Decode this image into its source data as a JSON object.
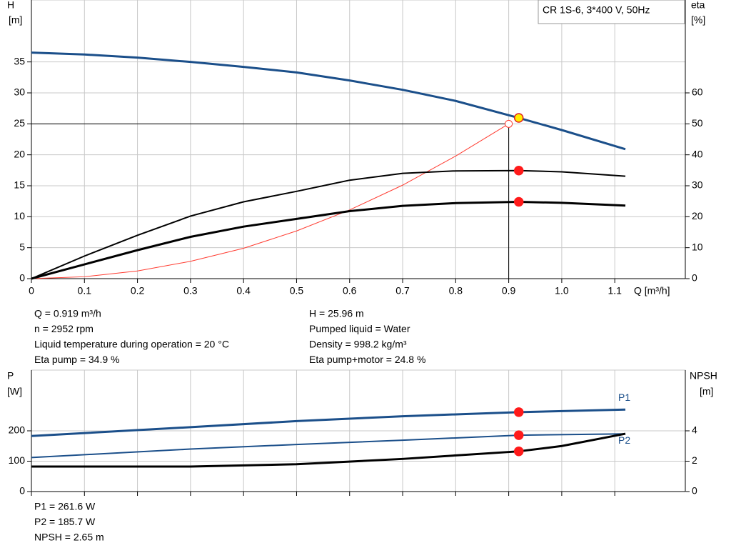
{
  "chart_data": [
    {
      "type": "line",
      "title": "CR 1S-6, 3*400 V, 50Hz",
      "ylabel": "H",
      "yunit": "[m]",
      "y2label": "eta",
      "y2unit": "[%]",
      "xlabel": "Q [m³/h]",
      "xlim": [
        0,
        1.233
      ],
      "xticks": [
        0,
        0.1,
        0.2,
        0.3,
        0.4,
        0.5,
        0.6,
        0.7,
        0.8,
        0.9,
        {
          "value": 1,
          "label": "1.0"
        },
        1.1
      ],
      "ylim": [
        0,
        45
      ],
      "yticks": [
        0,
        5,
        10,
        15,
        20,
        25,
        30,
        35
      ],
      "y2lim": [
        0,
        90
      ],
      "y2ticks": [
        0,
        10,
        20,
        30,
        40,
        50,
        60
      ],
      "grid": true,
      "show_xtick_labels": true,
      "series": [
        {
          "color": "#1b4f8a",
          "width": 3,
          "x": [
            0,
            0.1,
            0.2,
            0.3,
            0.4,
            0.5,
            0.6,
            0.7,
            0.8,
            0.919,
            1.0,
            1.12
          ],
          "values": [
            36.5,
            36.2,
            35.7,
            35.0,
            34.2,
            33.3,
            32.0,
            30.5,
            28.7,
            25.96,
            24.0,
            20.9
          ]
        },
        {
          "color": "#ff3b30",
          "width": 1,
          "x": [
            0,
            0.1,
            0.2,
            0.3,
            0.4,
            0.5,
            0.6,
            0.7,
            0.8,
            0.9
          ],
          "values": [
            0,
            0.31,
            1.24,
            2.8,
            4.9,
            7.7,
            11.1,
            15.1,
            19.8,
            25.0
          ]
        },
        {
          "color": "#000000",
          "width": 2,
          "axis": "y2",
          "x": [
            0,
            0.1,
            0.2,
            0.3,
            0.4,
            0.5,
            0.6,
            0.7,
            0.8,
            0.919,
            1.0,
            1.12
          ],
          "values": [
            0,
            7.3,
            14.0,
            20.2,
            24.8,
            28.2,
            31.8,
            34.0,
            34.8,
            34.9,
            34.5,
            33.1
          ]
        },
        {
          "color": "#000000",
          "width": 3,
          "axis": "y2",
          "x": [
            0,
            0.1,
            0.2,
            0.3,
            0.4,
            0.5,
            0.6,
            0.7,
            0.8,
            0.919,
            1.0,
            1.12
          ],
          "values": [
            0,
            4.6,
            9.2,
            13.5,
            16.8,
            19.3,
            21.8,
            23.5,
            24.4,
            24.8,
            24.5,
            23.6
          ]
        }
      ],
      "markers": [
        {
          "x": 0.919,
          "y": 25.96,
          "fill": "#ffee00",
          "stroke": "#e02020"
        },
        {
          "x": 0.919,
          "y": 34.9,
          "axis": "y2",
          "fill": "#ff1a1a",
          "stroke": "#ff1a1a"
        },
        {
          "x": 0.919,
          "y": 24.8,
          "axis": "y2",
          "fill": "#ff1a1a",
          "stroke": "#ff1a1a"
        }
      ],
      "duty_point": {
        "x": 0.9,
        "y": 25
      },
      "readouts": [
        [
          "Q = 0.919 m³/h",
          "n = 2952 rpm",
          "Liquid temperature during operation = 20 °C",
          "Eta pump = 34.9 %"
        ],
        [
          "H = 25.96 m",
          "Pumped liquid = Water",
          "Density = 998.2 kg/m³",
          "Eta pump+motor = 24.8 %"
        ]
      ]
    },
    {
      "type": "line",
      "ylabel": "P",
      "yunit": "[W]",
      "y2label": "NPSH",
      "y2unit": "[m]",
      "xlim": [
        0,
        1.233
      ],
      "xticks": [
        0,
        0.1,
        0.2,
        0.3,
        0.4,
        0.5,
        0.6,
        0.7,
        0.8,
        0.9,
        1,
        1.1
      ],
      "ylim": [
        0,
        400
      ],
      "yticks": [
        0,
        100,
        200
      ],
      "y2lim": [
        0,
        8
      ],
      "y2ticks": [
        0,
        2,
        4
      ],
      "grid": true,
      "show_xtick_labels": false,
      "series": [
        {
          "name": "P1",
          "color": "#1b4f8a",
          "width": 3,
          "x": [
            0,
            0.3,
            0.5,
            0.7,
            0.919,
            1.12
          ],
          "values": [
            183,
            212,
            232,
            248,
            261.6,
            270
          ]
        },
        {
          "name": "P2",
          "color": "#1b4f8a",
          "width": 2,
          "x": [
            0,
            0.3,
            0.5,
            0.7,
            0.919,
            1.12
          ],
          "values": [
            112,
            140,
            155,
            169,
            185.7,
            190
          ]
        },
        {
          "color": "#000000",
          "width": 3,
          "axis": "y2",
          "x": [
            0,
            0.3,
            0.5,
            0.7,
            0.919,
            1.0,
            1.12
          ],
          "values": [
            1.65,
            1.65,
            1.8,
            2.15,
            2.65,
            3.0,
            3.81
          ]
        }
      ],
      "markers": [
        {
          "x": 0.919,
          "y": 261.6,
          "fill": "#ff1a1a",
          "stroke": "#ff1a1a"
        },
        {
          "x": 0.919,
          "y": 185.7,
          "fill": "#ff1a1a",
          "stroke": "#ff1a1a"
        },
        {
          "x": 0.919,
          "y": 2.65,
          "axis": "y2",
          "fill": "#ff1a1a",
          "stroke": "#ff1a1a"
        }
      ],
      "readouts": [
        [
          "P1 = 261.6 W",
          "P2 = 185.7 W",
          "NPSH = 2.65 m"
        ]
      ]
    }
  ]
}
